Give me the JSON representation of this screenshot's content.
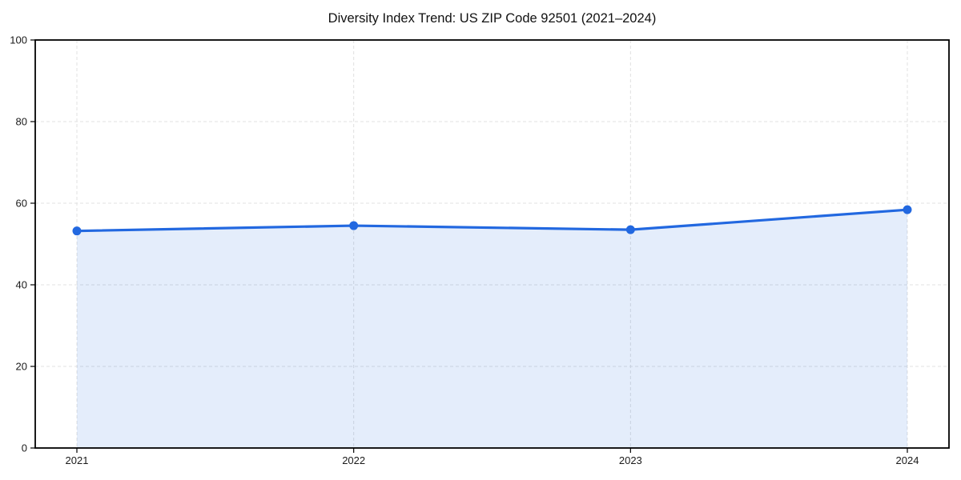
{
  "chart_data": {
    "type": "line",
    "title": "Diversity Index Trend: US ZIP Code 92501 (2021–2024)",
    "categories": [
      "2021",
      "2022",
      "2023",
      "2024"
    ],
    "values": [
      53.2,
      54.5,
      53.5,
      58.4
    ],
    "xlabel": "",
    "ylabel": "",
    "ylim": [
      0,
      100
    ],
    "yticks": [
      0,
      20,
      40,
      60,
      80,
      100
    ],
    "grid": true,
    "grid_style": "dashed",
    "legend": "none",
    "area_fill": true,
    "marker": "circle",
    "colors": {
      "line": "#2268e0",
      "marker": "#2268e0",
      "area": "rgba(34,104,224,0.12)",
      "grid": "#e0e0e0",
      "spine": "#000000",
      "background": "#ffffff"
    }
  }
}
